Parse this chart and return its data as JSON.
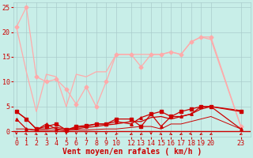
{
  "background_color": "#c8eee8",
  "grid_color": "#aacccc",
  "xlabel": "Vent moyen/en rafales ( km/h )",
  "xlabel_color": "#cc0000",
  "xlabel_fontsize": 7,
  "tick_color": "#cc0000",
  "tick_fontsize": 6,
  "ylim": [
    -1,
    26
  ],
  "xlim": [
    -0.3,
    23.5
  ],
  "x_positions": [
    0,
    1,
    2,
    3,
    4,
    5,
    6,
    7,
    8,
    9,
    10,
    11.5,
    12.5,
    13.5,
    14.5,
    15.5,
    16.5,
    17.5,
    18.5,
    19.5,
    22.5
  ],
  "x_labels": [
    "0",
    "1",
    "2",
    "3",
    "4",
    "5",
    "6",
    "7",
    "8",
    "9",
    "10",
    "12",
    "13",
    "14",
    "15",
    "16",
    "17",
    "18",
    "19",
    "20",
    "23"
  ],
  "series": [
    {
      "x": [
        0,
        1,
        2,
        3,
        4,
        5,
        6,
        7,
        8,
        9,
        10,
        11.5,
        12.5,
        13.5,
        14.5,
        15.5,
        16.5,
        17.5,
        18.5,
        19.5,
        22.5
      ],
      "y": [
        21,
        25,
        11,
        10,
        10.5,
        8.5,
        5.5,
        9,
        5,
        10,
        15.5,
        15.5,
        13,
        15.5,
        15.5,
        16,
        15.5,
        18,
        19,
        19,
        1
      ],
      "color": "#ffaaaa",
      "lw": 0.9,
      "marker": "D",
      "ms": 2.5,
      "zorder": 3
    },
    {
      "x": [
        0,
        1,
        2,
        3,
        4,
        5,
        6,
        7,
        8,
        9,
        10,
        11.5,
        12.5,
        13.5,
        14.5,
        15.5,
        16.5,
        17.5,
        18.5,
        19.5,
        22.5
      ],
      "y": [
        21,
        12,
        4,
        11.5,
        11,
        5,
        11.5,
        11,
        12,
        12,
        15.5,
        15.5,
        15.5,
        15.5,
        15.5,
        16,
        15.5,
        18,
        19,
        18.5,
        1
      ],
      "color": "#ffaaaa",
      "lw": 0.9,
      "marker": null,
      "ms": 0,
      "zorder": 2
    },
    {
      "x": [
        0,
        1,
        2,
        3,
        4,
        5,
        6,
        7,
        8,
        9,
        10,
        11.5,
        12.5,
        13.5,
        14.5,
        15.5,
        16.5,
        17.5,
        18.5,
        19.5,
        22.5
      ],
      "y": [
        4,
        2.5,
        0.5,
        1,
        1.5,
        0.3,
        1,
        1.2,
        1.5,
        1.5,
        2.5,
        2.5,
        1,
        3.5,
        4,
        3,
        4,
        4.5,
        5,
        5,
        4
      ],
      "color": "#cc0000",
      "lw": 0.9,
      "marker": "s",
      "ms": 2.5,
      "zorder": 4
    },
    {
      "x": [
        0,
        1,
        2,
        3,
        4,
        5,
        6,
        7,
        8,
        9,
        10,
        11.5,
        12.5,
        13.5,
        14.5,
        15.5,
        16.5,
        17.5,
        18.5,
        19.5,
        22.5
      ],
      "y": [
        4,
        2.5,
        0.5,
        0.5,
        0.8,
        0.5,
        0.5,
        0.8,
        1,
        1.3,
        1.5,
        2,
        2,
        2.8,
        3,
        2.5,
        3,
        3.5,
        4.5,
        5,
        4.2
      ],
      "color": "#cc0000",
      "lw": 0.9,
      "marker": null,
      "ms": 0,
      "zorder": 2
    },
    {
      "x": [
        0,
        1,
        2,
        3,
        4,
        5,
        6,
        7,
        8,
        9,
        10,
        11.5,
        12.5,
        13.5,
        14.5,
        15.5,
        16.5,
        17.5,
        18.5,
        19.5,
        22.5
      ],
      "y": [
        2.5,
        0.5,
        0.3,
        1.5,
        0.5,
        0.2,
        0.8,
        1,
        1.5,
        1.5,
        2,
        1.5,
        2.8,
        3.5,
        1,
        3,
        3,
        3.5,
        5,
        5,
        0.5
      ],
      "color": "#cc0000",
      "lw": 0.9,
      "marker": "^",
      "ms": 2.5,
      "zorder": 4
    },
    {
      "x": [
        0,
        1,
        2,
        3,
        4,
        5,
        6,
        7,
        8,
        9,
        10,
        11.5,
        12.5,
        13.5,
        14.5,
        15.5,
        16.5,
        17.5,
        18.5,
        19.5,
        22.5
      ],
      "y": [
        0.5,
        0.5,
        0.2,
        0.2,
        0.3,
        0.2,
        0.3,
        0.3,
        0.4,
        0.5,
        0.5,
        0.8,
        1,
        1,
        0.5,
        1.5,
        1.5,
        2,
        2.5,
        3,
        0.5
      ],
      "color": "#cc0000",
      "lw": 0.7,
      "marker": null,
      "ms": 0,
      "zorder": 2
    }
  ],
  "yticks": [
    0,
    5,
    10,
    15,
    20,
    25
  ],
  "hline_y": 0,
  "hline_color": "#cc0000",
  "arrow_angles_deg": [
    0,
    30,
    45,
    45,
    0,
    0,
    0,
    0,
    0,
    0,
    330,
    315,
    315,
    0,
    45,
    45,
    315,
    30,
    315,
    315,
    315
  ]
}
